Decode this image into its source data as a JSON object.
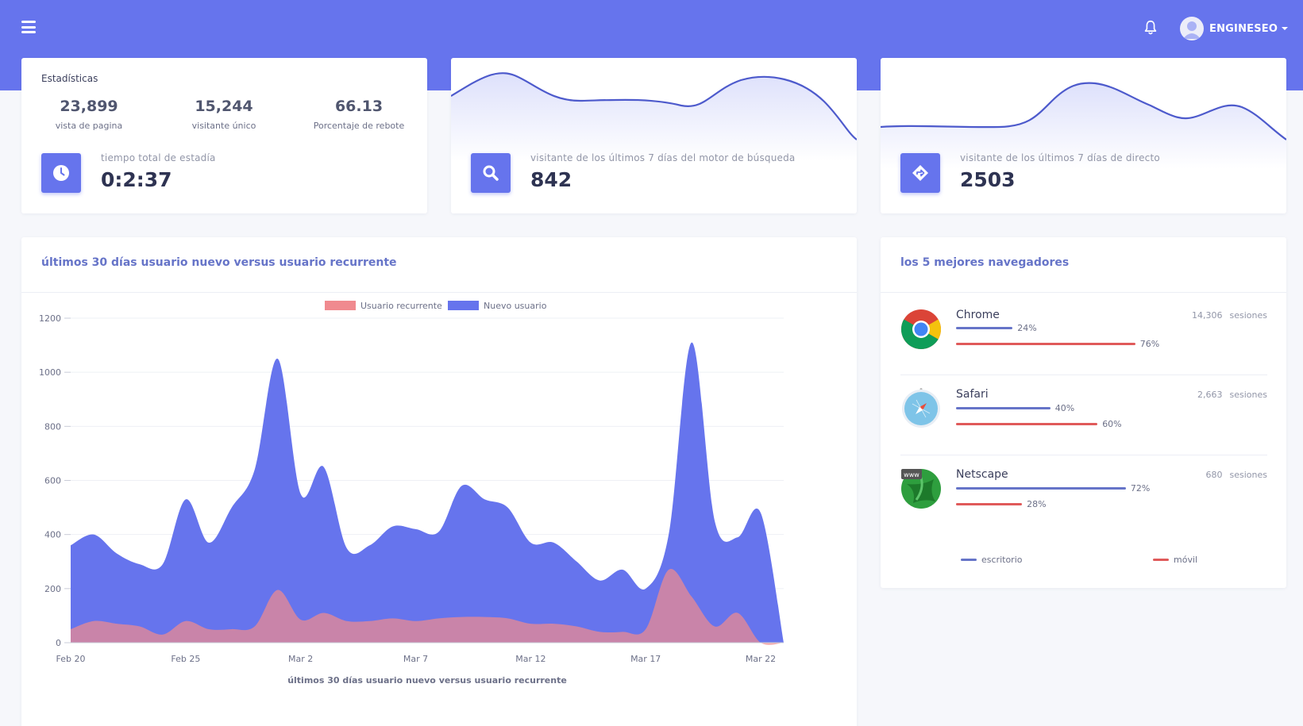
{
  "topbar": {
    "menu_icon": "hamburger-menu-icon",
    "notification_icon": "bell-icon",
    "user_name": "ENGINESEO",
    "colors": {
      "primary": "#6674ed"
    }
  },
  "stats_card": {
    "title": "Estadísticas",
    "stats": [
      {
        "value": "23,899",
        "label": "vista de pagina"
      },
      {
        "value": "15,244",
        "label": "visitante único"
      },
      {
        "value": "66.13",
        "label": "Porcentaje de rebote"
      }
    ],
    "icon": "clock-icon",
    "info_label": "tiempo total de estadía",
    "info_value": "0:2:37"
  },
  "search_card": {
    "icon": "search-icon",
    "label": "visitante de los últimos 7 días del motor de búsqueda",
    "value": "842"
  },
  "direct_card": {
    "icon": "direction-sign-icon",
    "label": "visitante de los últimos 7 días de directo",
    "value": "2503"
  },
  "chart_card": {
    "title": "últimos 30 días usuario nuevo versus usuario recurrente"
  },
  "chart_data": {
    "type": "area",
    "title": "",
    "xlabel": "últimos 30 días usuario nuevo versus usuario recurrente",
    "ylabel": "",
    "ylim": [
      0,
      1200
    ],
    "yticks": [
      "0",
      "200",
      "400",
      "600",
      "800",
      "1000",
      "1200"
    ],
    "xtick_labels": [
      "Feb 20",
      "Feb 25",
      "Mar 2",
      "Mar 7",
      "Mar 12",
      "Mar 17",
      "Mar 22"
    ],
    "x": [
      "Feb 20",
      "Feb 21",
      "Feb 22",
      "Feb 23",
      "Feb 24",
      "Feb 25",
      "Feb 26",
      "Feb 27",
      "Feb 28",
      "Mar 1",
      "Mar 2",
      "Mar 3",
      "Mar 4",
      "Mar 5",
      "Mar 6",
      "Mar 7",
      "Mar 8",
      "Mar 9",
      "Mar 10",
      "Mar 11",
      "Mar 12",
      "Mar 13",
      "Mar 14",
      "Mar 15",
      "Mar 16",
      "Mar 17",
      "Mar 18",
      "Mar 19",
      "Mar 20",
      "Mar 21",
      "Mar 22",
      "Mar 23"
    ],
    "legend_position": "top-center",
    "grid": true,
    "series": [
      {
        "name": "Usuario recurrente",
        "color": "#f08a8f",
        "values": [
          50,
          80,
          70,
          60,
          30,
          80,
          50,
          50,
          60,
          195,
          85,
          110,
          80,
          80,
          90,
          80,
          90,
          95,
          95,
          90,
          70,
          70,
          60,
          40,
          40,
          50,
          270,
          170,
          60,
          110,
          0,
          0
        ]
      },
      {
        "name": "Nuevo usuario",
        "color": "#6674ed",
        "values": [
          360,
          400,
          330,
          290,
          290,
          530,
          370,
          500,
          640,
          1050,
          550,
          650,
          350,
          360,
          430,
          420,
          410,
          580,
          530,
          500,
          370,
          370,
          300,
          230,
          270,
          200,
          400,
          1110,
          450,
          390,
          480,
          0
        ]
      }
    ]
  },
  "browsers_card": {
    "title": "los 5 mejores navegadores",
    "browsers": [
      {
        "name": "Chrome",
        "logo": "chrome-logo-icon",
        "sessions": "14,306",
        "sessions_unit": "sesiones",
        "desktop_pct": 24,
        "desktop_label": "24%",
        "mobile_pct": 76,
        "mobile_label": "76%"
      },
      {
        "name": "Safari",
        "logo": "safari-logo-icon",
        "sessions": "2,663",
        "sessions_unit": "sesiones",
        "desktop_pct": 40,
        "desktop_label": "40%",
        "mobile_pct": 60,
        "mobile_label": "60%"
      },
      {
        "name": "Netscape",
        "logo": "netscape-logo-icon",
        "logo_text": "www",
        "sessions": "680",
        "sessions_unit": "sesiones",
        "desktop_pct": 72,
        "desktop_label": "72%",
        "mobile_pct": 28,
        "mobile_label": "28%"
      }
    ],
    "legend": [
      {
        "label": "escritorio",
        "color": "#6674c8"
      },
      {
        "label": "móvil",
        "color": "#e05a5a"
      }
    ]
  }
}
